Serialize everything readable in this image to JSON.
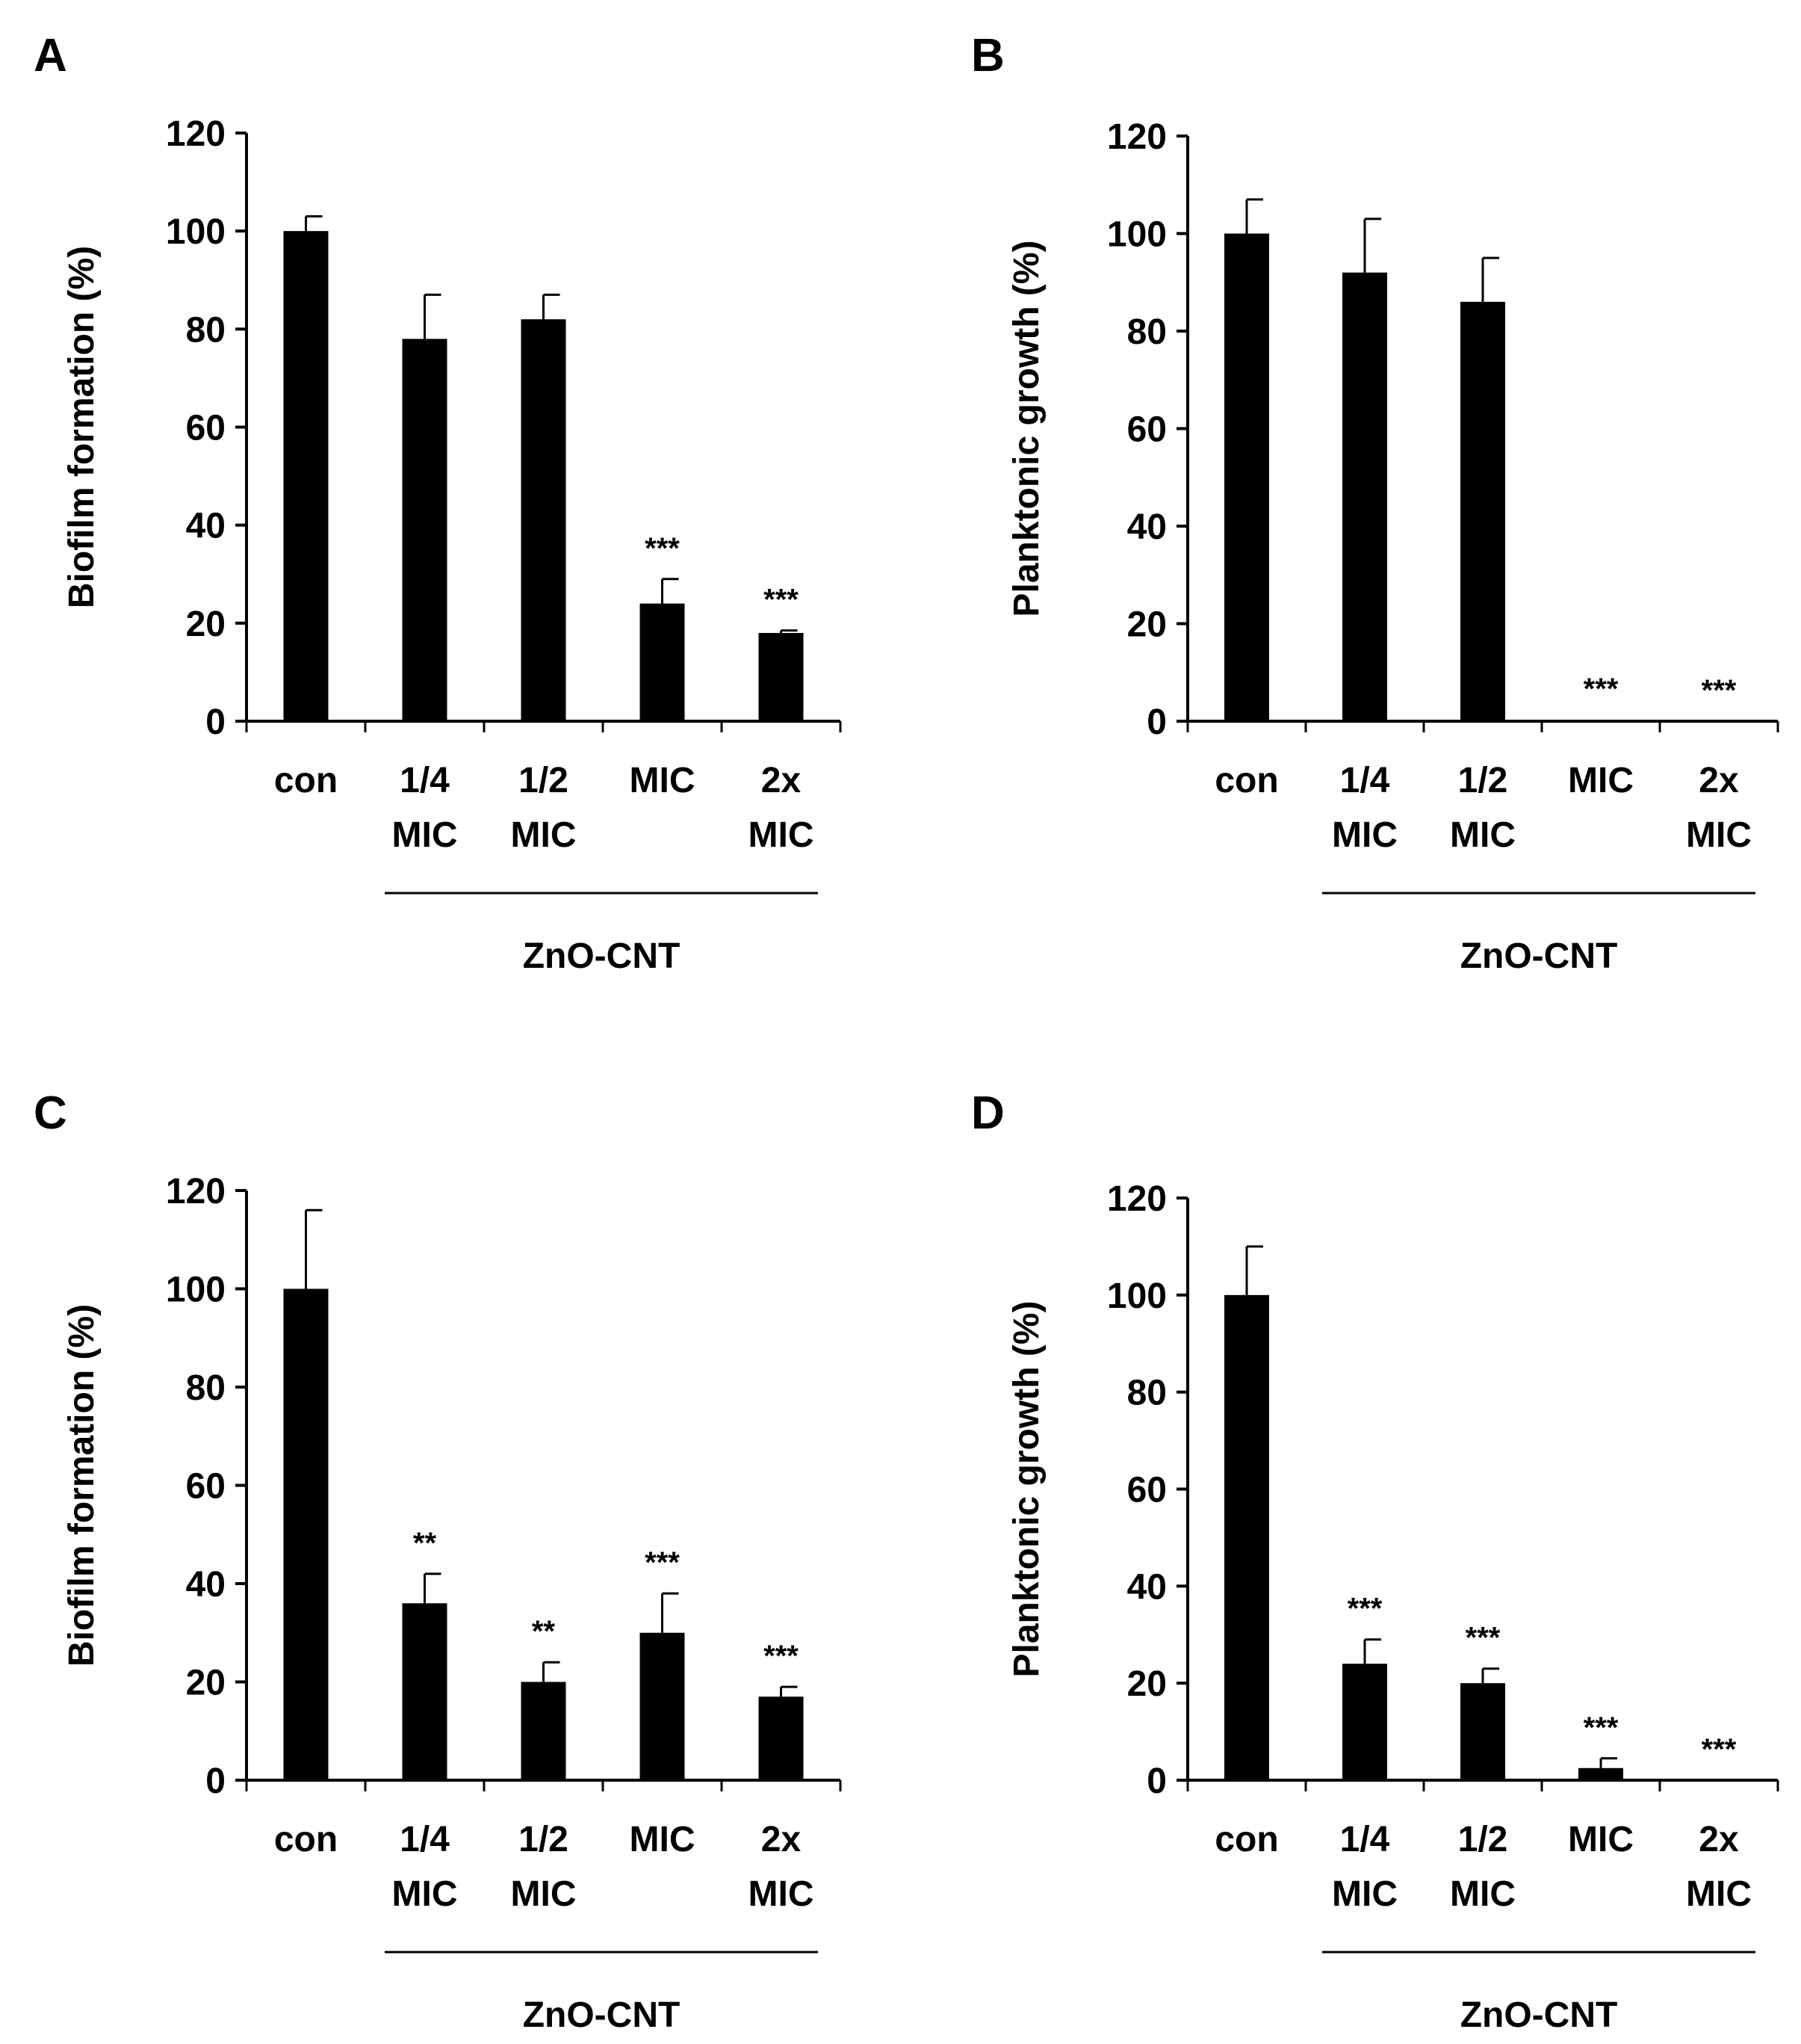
{
  "chart_data": [
    {
      "panel": "A",
      "type": "bar",
      "ylabel": "Biofilm formation (%)",
      "ylim": [
        0,
        120
      ],
      "yticks": [
        0,
        20,
        40,
        60,
        80,
        100,
        120
      ],
      "categories": [
        [
          "con"
        ],
        [
          "1/4",
          "MIC"
        ],
        [
          "1/2",
          "MIC"
        ],
        [
          "MIC"
        ],
        [
          "2x",
          "MIC"
        ]
      ],
      "values": [
        100,
        78,
        82,
        24,
        18
      ],
      "errors": [
        3,
        9,
        5,
        5,
        0.5
      ],
      "significance": [
        "",
        "",
        "",
        "***",
        "***"
      ],
      "group_label": "ZnO-CNT"
    },
    {
      "panel": "B",
      "type": "bar",
      "ylabel": "Planktonic growth (%)",
      "ylim": [
        0,
        120
      ],
      "yticks": [
        0,
        20,
        40,
        60,
        80,
        100,
        120
      ],
      "categories": [
        [
          "con"
        ],
        [
          "1/4",
          "MIC"
        ],
        [
          "1/2",
          "MIC"
        ],
        [
          "MIC"
        ],
        [
          "2x",
          "MIC"
        ]
      ],
      "values": [
        100,
        92,
        86,
        0.3,
        0
      ],
      "errors": [
        7,
        11,
        9,
        0,
        0
      ],
      "significance": [
        "",
        "",
        "",
        "***",
        "***"
      ],
      "group_label": "ZnO-CNT"
    },
    {
      "panel": "C",
      "type": "bar",
      "ylabel": "Biofilm formation (%)",
      "ylim": [
        0,
        120
      ],
      "yticks": [
        0,
        20,
        40,
        60,
        80,
        100,
        120
      ],
      "categories": [
        [
          "con"
        ],
        [
          "1/4",
          "MIC"
        ],
        [
          "1/2",
          "MIC"
        ],
        [
          "MIC"
        ],
        [
          "2x",
          "MIC"
        ]
      ],
      "values": [
        100,
        36,
        20,
        30,
        17
      ],
      "errors": [
        16,
        6,
        4,
        8,
        2
      ],
      "significance": [
        "",
        "**",
        "**",
        "***",
        "***"
      ],
      "group_label": "ZnO-CNT"
    },
    {
      "panel": "D",
      "type": "bar",
      "ylabel": "Planktonic growth (%)",
      "ylim": [
        0,
        120
      ],
      "yticks": [
        0,
        20,
        40,
        60,
        80,
        100,
        120
      ],
      "categories": [
        [
          "con"
        ],
        [
          "1/4",
          "MIC"
        ],
        [
          "1/2",
          "MIC"
        ],
        [
          "MIC"
        ],
        [
          "2x",
          "MIC"
        ]
      ],
      "values": [
        100,
        24,
        20,
        2.5,
        0
      ],
      "errors": [
        10,
        5,
        3,
        2,
        0
      ],
      "significance": [
        "",
        "***",
        "***",
        "***",
        "***"
      ],
      "group_label": "ZnO-CNT"
    }
  ]
}
